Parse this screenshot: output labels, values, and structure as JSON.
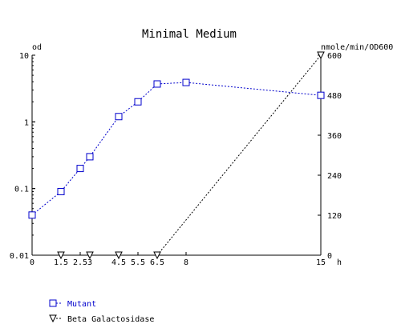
{
  "chart_data": {
    "type": "line",
    "title": "Minimal Medium",
    "left_axis": {
      "label": "od",
      "scale": "log",
      "range": [
        0.01,
        10
      ],
      "ticks": [
        {
          "value": 0.01,
          "label": "0.01"
        },
        {
          "value": 0.1,
          "label": "0.1"
        },
        {
          "value": 1,
          "label": "1"
        },
        {
          "value": 10,
          "label": "10"
        }
      ]
    },
    "right_axis": {
      "label": "nmole/min/OD600",
      "scale": "linear",
      "range": [
        0,
        600
      ],
      "ticks": [
        {
          "value": 0,
          "label": "0"
        },
        {
          "value": 120,
          "label": "120"
        },
        {
          "value": 240,
          "label": "240"
        },
        {
          "value": 360,
          "label": "360"
        },
        {
          "value": 480,
          "label": "480"
        },
        {
          "value": 600,
          "label": "600"
        }
      ]
    },
    "x_axis": {
      "unit": "h",
      "range": [
        0,
        15
      ],
      "ticks": [
        {
          "value": 0,
          "label": "0"
        },
        {
          "value": 1.5,
          "label": "1.5"
        },
        {
          "value": 2.5,
          "label": "2.5"
        },
        {
          "value": 3,
          "label": "3"
        },
        {
          "value": 4.5,
          "label": "4.5"
        },
        {
          "value": 5.5,
          "label": "5.5"
        },
        {
          "value": 6.5,
          "label": "6.5"
        },
        {
          "value": 8,
          "label": "8"
        },
        {
          "value": 15,
          "label": "15"
        }
      ]
    },
    "grid": false,
    "legend_position": "bottom-left",
    "series": [
      {
        "name": "Mutant",
        "axis": "left",
        "marker": "square",
        "color": "#0000cc",
        "x": [
          0,
          1.5,
          2.5,
          3,
          4.5,
          5.5,
          6.5,
          8,
          15
        ],
        "y": [
          0.04,
          0.09,
          0.2,
          0.3,
          1.2,
          2.0,
          3.7,
          3.9,
          2.5
        ]
      },
      {
        "name": "Beta Galactosidase",
        "axis": "right",
        "marker": "triangle-down",
        "color": "#000000",
        "x": [
          1.5,
          3,
          4.5,
          6.5,
          15
        ],
        "y": [
          0,
          0,
          0,
          0,
          600
        ]
      }
    ]
  }
}
